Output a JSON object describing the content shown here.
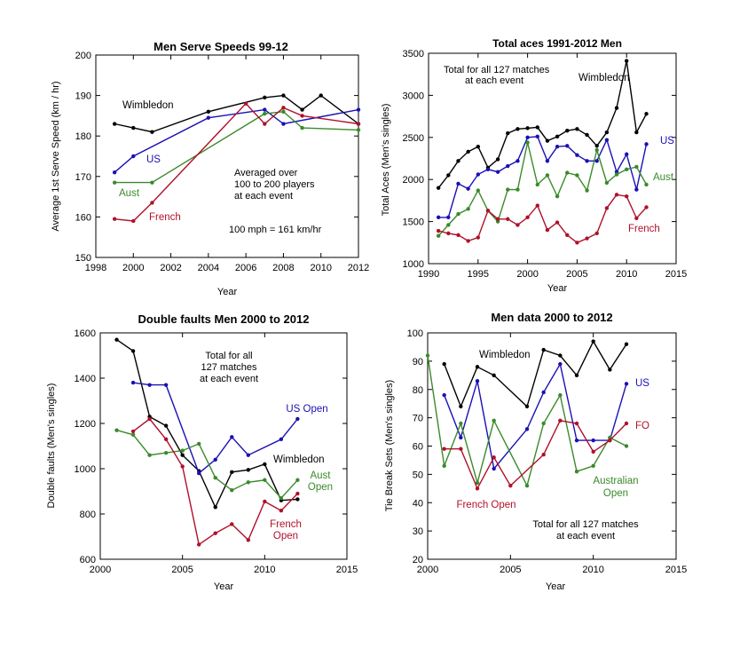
{
  "colors": {
    "black": "#000000",
    "blue": "#1a10b5",
    "green": "#3a8a2a",
    "red": "#b0102a"
  },
  "chart_data": [
    {
      "type": "line",
      "title": "Men Serve Speeds 99-12",
      "xlabel": "Year",
      "ylabel": "Average 1st Serve Speed  (km / hr)",
      "xlim": [
        1998,
        2012
      ],
      "ylim": [
        150,
        200
      ],
      "xticks": [
        1998,
        2000,
        2002,
        2004,
        2006,
        2008,
        2010,
        2012
      ],
      "yticks": [
        150,
        160,
        170,
        180,
        190,
        200
      ],
      "annotations": [
        "Averaged over",
        "100 to 200 players",
        "at each event",
        "100 mph = 161 km/hr"
      ],
      "series": [
        {
          "name": "Wimbledon",
          "color": "#000000",
          "x": [
            1999,
            2000,
            2001,
            2004,
            2007,
            2008,
            2009,
            2010,
            2012
          ],
          "y": [
            183,
            182,
            181,
            186,
            189.5,
            190,
            186.5,
            190,
            183
          ]
        },
        {
          "name": "US",
          "color": "#1a10b5",
          "x": [
            1999,
            2000,
            2004,
            2007,
            2008,
            2012
          ],
          "y": [
            171,
            175,
            184.5,
            186.5,
            183,
            186.5
          ]
        },
        {
          "name": "Aust",
          "color": "#3a8a2a",
          "x": [
            1999,
            2001,
            2007,
            2008,
            2009,
            2012
          ],
          "y": [
            168.5,
            168.5,
            185.5,
            186,
            182,
            181.5
          ]
        },
        {
          "name": "French",
          "color": "#b0102a",
          "x": [
            1999,
            2000,
            2001,
            2006,
            2007,
            2008,
            2009,
            2012
          ],
          "y": [
            159.5,
            159,
            163.5,
            188,
            183,
            187,
            185,
            183
          ]
        }
      ]
    },
    {
      "type": "line",
      "title": "Total aces 1991-2012 Men",
      "xlabel": "Year",
      "ylabel": "Total Aces (Men's singles)",
      "xlim": [
        1990,
        2015
      ],
      "ylim": [
        1000,
        3500
      ],
      "xticks": [
        1990,
        1995,
        2000,
        2005,
        2010,
        2015
      ],
      "yticks": [
        1000,
        1500,
        2000,
        2500,
        3000,
        3500
      ],
      "annotations": [
        "Total for all 127 matches",
        "at each event"
      ],
      "series": [
        {
          "name": "Wimbledon",
          "color": "#000000",
          "x": [
            1991,
            1992,
            1993,
            1994,
            1995,
            1996,
            1997,
            1998,
            1999,
            2000,
            2001,
            2002,
            2003,
            2004,
            2005,
            2006,
            2007,
            2008,
            2009,
            2010,
            2011,
            2012
          ],
          "y": [
            1900,
            2050,
            2220,
            2330,
            2390,
            2140,
            2240,
            2550,
            2600,
            2610,
            2620,
            2460,
            2510,
            2580,
            2600,
            2530,
            2400,
            2560,
            2850,
            3410,
            2560,
            2780
          ]
        },
        {
          "name": "US",
          "color": "#1a10b5",
          "x": [
            1991,
            1992,
            1993,
            1994,
            1995,
            1996,
            1997,
            1998,
            1999,
            2000,
            2001,
            2002,
            2003,
            2004,
            2005,
            2006,
            2007,
            2008,
            2009,
            2010,
            2011,
            2012
          ],
          "y": [
            1550,
            1550,
            1950,
            1890,
            2060,
            2120,
            2090,
            2160,
            2220,
            2500,
            2510,
            2220,
            2390,
            2400,
            2290,
            2220,
            2220,
            2470,
            2090,
            2300,
            1880,
            2420
          ]
        },
        {
          "name": "Aust",
          "color": "#3a8a2a",
          "x": [
            1991,
            1992,
            1993,
            1994,
            1995,
            1996,
            1997,
            1998,
            1999,
            2000,
            2001,
            2002,
            2003,
            2004,
            2005,
            2006,
            2007,
            2008,
            2009,
            2010,
            2011,
            2012
          ],
          "y": [
            1330,
            1460,
            1590,
            1650,
            1870,
            1630,
            1500,
            1880,
            1880,
            2440,
            1940,
            2050,
            1800,
            2080,
            2050,
            1870,
            2350,
            1960,
            2060,
            2120,
            2150,
            1940
          ]
        },
        {
          "name": "French",
          "color": "#b0102a",
          "x": [
            1991,
            1992,
            1993,
            1994,
            1995,
            1996,
            1997,
            1998,
            1999,
            2000,
            2001,
            2002,
            2003,
            2004,
            2005,
            2006,
            2007,
            2008,
            2009,
            2010,
            2011,
            2012
          ],
          "y": [
            1390,
            1360,
            1340,
            1270,
            1310,
            1630,
            1530,
            1530,
            1460,
            1550,
            1690,
            1400,
            1490,
            1340,
            1250,
            1300,
            1360,
            1660,
            1820,
            1800,
            1540,
            1670
          ]
        }
      ]
    },
    {
      "type": "line",
      "title": "Double faults Men 2000 to 2012",
      "xlabel": "Year",
      "ylabel": "Double faults (Men's singles)",
      "xlim": [
        2000,
        2015
      ],
      "ylim": [
        600,
        1600
      ],
      "xticks": [
        2000,
        2005,
        2010,
        2015
      ],
      "yticks": [
        600,
        800,
        1000,
        1200,
        1400,
        1600
      ],
      "annotations": [
        "Total for all",
        "127 matches",
        "at each event"
      ],
      "series": [
        {
          "name": "Wimbledon",
          "color": "#000000",
          "x": [
            2001,
            2002,
            2003,
            2004,
            2005,
            2006,
            2007,
            2008,
            2009,
            2010,
            2011,
            2012
          ],
          "y": [
            1570,
            1520,
            1230,
            1190,
            1060,
            990,
            830,
            985,
            995,
            1020,
            860,
            865
          ]
        },
        {
          "name": "US Open",
          "color": "#1a10b5",
          "x": [
            2002,
            2003,
            2004,
            2006,
            2007,
            2008,
            2009,
            2011,
            2012
          ],
          "y": [
            1380,
            1370,
            1370,
            980,
            1040,
            1140,
            1060,
            1130,
            1220
          ]
        },
        {
          "name": "Aust Open",
          "color": "#3a8a2a",
          "x": [
            2001,
            2002,
            2003,
            2004,
            2005,
            2006,
            2007,
            2008,
            2009,
            2010,
            2011,
            2012
          ],
          "y": [
            1170,
            1150,
            1060,
            1070,
            1080,
            1110,
            960,
            905,
            940,
            950,
            870,
            950
          ]
        },
        {
          "name": "French Open",
          "color": "#b0102a",
          "x": [
            2002,
            2003,
            2004,
            2005,
            2006,
            2007,
            2008,
            2009,
            2010,
            2011,
            2012
          ],
          "y": [
            1165,
            1220,
            1130,
            1010,
            665,
            715,
            755,
            685,
            855,
            815,
            890
          ]
        }
      ]
    },
    {
      "type": "line",
      "title": "Men data 2000 to 2012",
      "xlabel": "Year",
      "ylabel": "Tie Break Sets (Men's singles)",
      "xlim": [
        2000,
        2015
      ],
      "ylim": [
        20,
        100
      ],
      "xticks": [
        2000,
        2005,
        2010,
        2015
      ],
      "yticks": [
        20,
        30,
        40,
        50,
        60,
        70,
        80,
        90,
        100
      ],
      "annotations": [
        "Total for all 127 matches",
        "at each event"
      ],
      "series": [
        {
          "name": "Wimbledon",
          "color": "#000000",
          "x": [
            2001,
            2002,
            2003,
            2004,
            2006,
            2007,
            2008,
            2009,
            2010,
            2011,
            2012
          ],
          "y": [
            89,
            74,
            88,
            85,
            74,
            94,
            92,
            85,
            97,
            87,
            96
          ]
        },
        {
          "name": "US",
          "color": "#1a10b5",
          "x": [
            2001,
            2002,
            2003,
            2004,
            2006,
            2007,
            2008,
            2009,
            2010,
            2011,
            2012
          ],
          "y": [
            78,
            63,
            83,
            52,
            66,
            79,
            89,
            62,
            62,
            62,
            82
          ]
        },
        {
          "name": "Australian Open",
          "color": "#3a8a2a",
          "x": [
            2000,
            2001,
            2002,
            2003,
            2004,
            2006,
            2007,
            2008,
            2009,
            2010,
            2011,
            2012
          ],
          "y": [
            92,
            53,
            68,
            47,
            69,
            46,
            68,
            78,
            51,
            53,
            63,
            60
          ]
        },
        {
          "name": "French Open",
          "color": "#b0102a",
          "x": [
            2001,
            2002,
            2003,
            2004,
            2005,
            2007,
            2008,
            2009,
            2010,
            2011,
            2012
          ],
          "y": [
            59,
            59,
            45,
            56,
            46,
            57,
            69,
            68,
            58,
            62,
            68
          ]
        }
      ]
    }
  ]
}
